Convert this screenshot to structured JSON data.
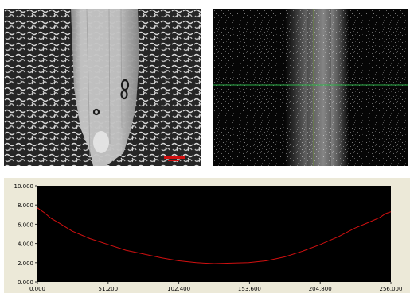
{
  "images": {
    "left": {
      "description": "micrograph"
    },
    "right": {
      "description": "intensity image"
    }
  },
  "chart_data": {
    "type": "line",
    "title": "",
    "xlabel": "",
    "ylabel": "",
    "xlim": [
      0,
      256
    ],
    "ylim": [
      0,
      10
    ],
    "x_ticks": [
      "0.000",
      "51.200",
      "102.400",
      "153.600",
      "204.800",
      "256.000"
    ],
    "y_ticks": [
      "0.000",
      "2.000",
      "4.000",
      "6.000",
      "8.000",
      "10.000"
    ],
    "grid": false,
    "background": "#000000",
    "line_color": "#d01010",
    "series": [
      {
        "x": [
          0,
          5,
          10,
          16,
          25,
          38,
          51,
          64,
          77,
          90,
          102,
          115,
          128,
          140,
          153,
          166,
          179,
          192,
          205,
          218,
          230,
          240,
          248,
          252,
          256
        ],
        "y": [
          7.7,
          7.2,
          6.6,
          6.1,
          5.3,
          4.5,
          3.9,
          3.3,
          2.9,
          2.5,
          2.2,
          2.0,
          1.9,
          1.95,
          2.0,
          2.2,
          2.6,
          3.2,
          3.9,
          4.7,
          5.6,
          6.2,
          6.7,
          7.1,
          7.3
        ]
      }
    ]
  }
}
